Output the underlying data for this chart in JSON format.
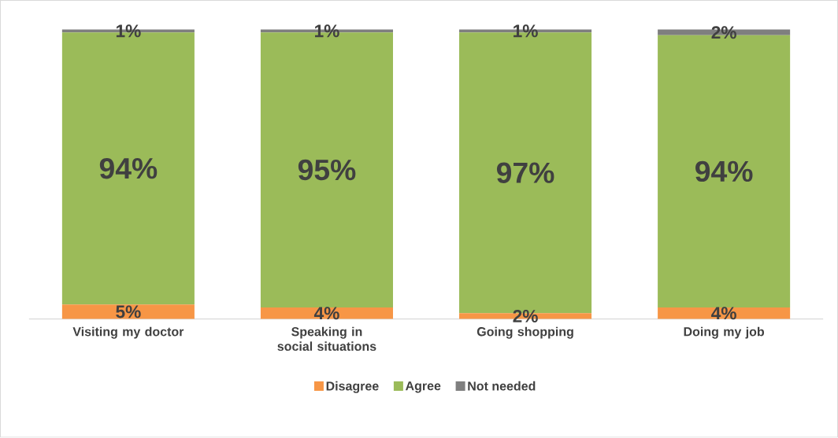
{
  "chart_data": {
    "type": "bar",
    "stacked": true,
    "categories": [
      "Visiting my doctor",
      "Speaking in social situations",
      "Going shopping",
      "Doing my job"
    ],
    "ylim": [
      0,
      100
    ],
    "legend": "bottom",
    "series": [
      {
        "name": "Disagree",
        "color": "#f79646",
        "values": [
          5,
          4,
          2,
          4
        ],
        "value_labels": [
          "5%",
          "4%",
          "2%",
          "4%"
        ]
      },
      {
        "name": "Agree",
        "color": "#9bbb59",
        "values": [
          94,
          95,
          97,
          94
        ],
        "value_labels": [
          "94%",
          "95%",
          "97%",
          "94%"
        ]
      },
      {
        "name": "Not needed",
        "color": "#7f7f7f",
        "values": [
          1,
          1,
          1,
          2
        ],
        "value_labels": [
          "1%",
          "1%",
          "1%",
          "2%"
        ]
      }
    ]
  }
}
